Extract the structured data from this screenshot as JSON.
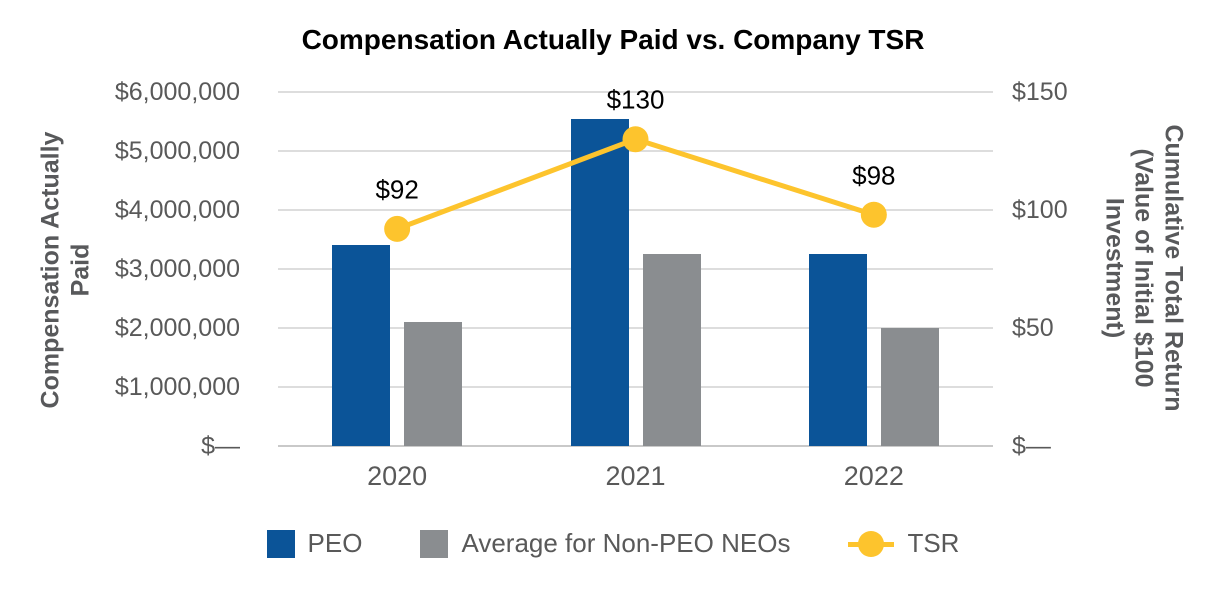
{
  "title": "Compensation Actually Paid vs. Company TSR",
  "chart_data": {
    "type": "combo",
    "title": "Compensation Actually Paid vs. Company TSR",
    "categories": [
      "2020",
      "2021",
      "2022"
    ],
    "series": [
      {
        "name": "PEO",
        "type": "bar",
        "axis": "left",
        "color": "#0B5498",
        "values": [
          3400000,
          5550000,
          3250000
        ]
      },
      {
        "name": "Average for Non-PEO NEOs",
        "type": "bar",
        "axis": "left",
        "color": "#8A8D90",
        "values": [
          2100000,
          3250000,
          2000000
        ]
      },
      {
        "name": "TSR",
        "type": "line",
        "axis": "right",
        "color": "#FDC42D",
        "values": [
          92,
          130,
          98
        ],
        "point_labels": [
          "$92",
          "$130",
          "$98"
        ]
      }
    ],
    "left_axis": {
      "title_lines": [
        "Compensation Actually",
        "Paid"
      ],
      "range": [
        0,
        6000000
      ],
      "ticks": [
        {
          "value": 6000000,
          "label": "$6,000,000"
        },
        {
          "value": 5000000,
          "label": "$5,000,000"
        },
        {
          "value": 4000000,
          "label": "$4,000,000"
        },
        {
          "value": 3000000,
          "label": "$3,000,000"
        },
        {
          "value": 2000000,
          "label": "$2,000,000"
        },
        {
          "value": 1000000,
          "label": "$1,000,000"
        },
        {
          "value": 0,
          "label": "$—"
        }
      ]
    },
    "right_axis": {
      "title_lines": [
        "Cumulative Total Return",
        "(Value of Initial $100",
        "Investment)"
      ],
      "range": [
        0,
        150
      ],
      "ticks": [
        {
          "value": 150,
          "label": "$150"
        },
        {
          "value": 100,
          "label": "$100"
        },
        {
          "value": 50,
          "label": "$50"
        },
        {
          "value": 0,
          "label": "$—"
        }
      ]
    },
    "grid": true,
    "legend_position": "bottom"
  },
  "colors": {
    "title_text": "#000000",
    "tick_text": "#595959",
    "axis_title_text": "#58595B",
    "gridline": "#DDDDDD",
    "baseline": "#C9C9C9",
    "data_label": "#000000",
    "background": "#FFFFFF"
  }
}
